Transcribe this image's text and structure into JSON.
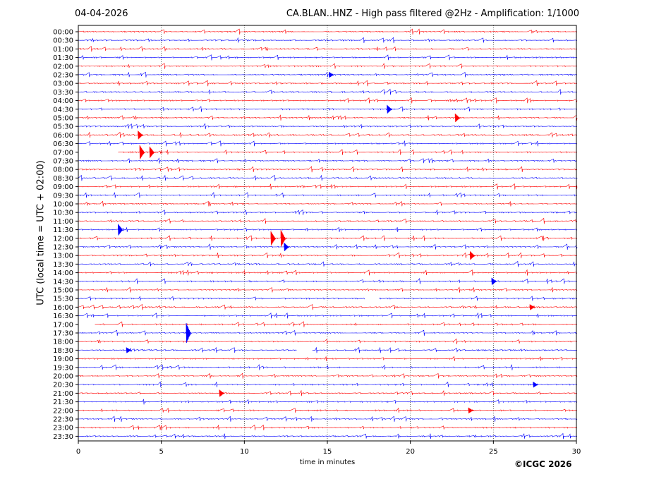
{
  "header": {
    "date": "04-04-2026",
    "title": "CA.BLAN..HNZ - High pass filtered @2Hz - Amplification: 1/1000"
  },
  "footer": {
    "copyright": "©ICGC 2026"
  },
  "chart_data": {
    "type": "line",
    "title": "CA.BLAN..HNZ - High pass filtered @2Hz - Amplification: 1/1000",
    "xlabel": "time in minutes",
    "ylabel": "UTC (local time = UTC + 02:00)",
    "xlim": [
      0,
      30
    ],
    "x_ticks": [
      0,
      5,
      10,
      15,
      20,
      25,
      30
    ],
    "grid": "vertical dotted at 5-minute intervals",
    "row_labels": [
      "00:00",
      "00:30",
      "01:00",
      "01:30",
      "02:00",
      "02:30",
      "03:00",
      "03:30",
      "04:00",
      "04:30",
      "05:00",
      "05:30",
      "06:00",
      "06:30",
      "07:00",
      "07:30",
      "08:00",
      "08:30",
      "09:00",
      "09:30",
      "10:00",
      "10:30",
      "11:00",
      "11:30",
      "12:00",
      "12:30",
      "13:00",
      "13:30",
      "14:00",
      "14:30",
      "15:00",
      "15:30",
      "16:00",
      "16:30",
      "17:00",
      "17:30",
      "18:00",
      "18:30",
      "19:00",
      "19:30",
      "20:00",
      "20:30",
      "21:00",
      "21:30",
      "22:00",
      "22:30",
      "23:00",
      "23:30"
    ],
    "trace_colors": [
      "#ff0000",
      "#0000ff"
    ],
    "gaps": [
      {
        "row": "07:00",
        "from": 0.0,
        "to": 2.4
      },
      {
        "row": "15:30",
        "from": 17.2,
        "to": 18.1
      },
      {
        "row": "17:00",
        "from": 0.0,
        "to": 1.0
      },
      {
        "row": "18:30",
        "from": 13.1,
        "to": 14.1
      }
    ],
    "events": [
      {
        "row": "02:30",
        "minute": 15.1,
        "amp": 4
      },
      {
        "row": "04:30",
        "minute": 18.6,
        "amp": 6
      },
      {
        "row": "05:00",
        "minute": 22.7,
        "amp": 6
      },
      {
        "row": "06:00",
        "minute": 3.6,
        "amp": 6
      },
      {
        "row": "07:00",
        "minute": 3.7,
        "amp": 10
      },
      {
        "row": "07:00",
        "minute": 4.3,
        "amp": 8
      },
      {
        "row": "11:30",
        "minute": 2.4,
        "amp": 8
      },
      {
        "row": "12:00",
        "minute": 11.6,
        "amp": 10
      },
      {
        "row": "12:00",
        "minute": 12.2,
        "amp": 12
      },
      {
        "row": "12:30",
        "minute": 12.4,
        "amp": 6
      },
      {
        "row": "13:00",
        "minute": 23.6,
        "amp": 6
      },
      {
        "row": "14:30",
        "minute": 24.9,
        "amp": 5
      },
      {
        "row": "16:00",
        "minute": 27.2,
        "amp": 4
      },
      {
        "row": "17:30",
        "minute": 6.5,
        "amp": 14
      },
      {
        "row": "18:30",
        "minute": 2.9,
        "amp": 4
      },
      {
        "row": "20:30",
        "minute": 27.4,
        "amp": 4
      },
      {
        "row": "21:00",
        "minute": 8.5,
        "amp": 5
      },
      {
        "row": "22:00",
        "minute": 23.5,
        "amp": 4
      }
    ]
  }
}
